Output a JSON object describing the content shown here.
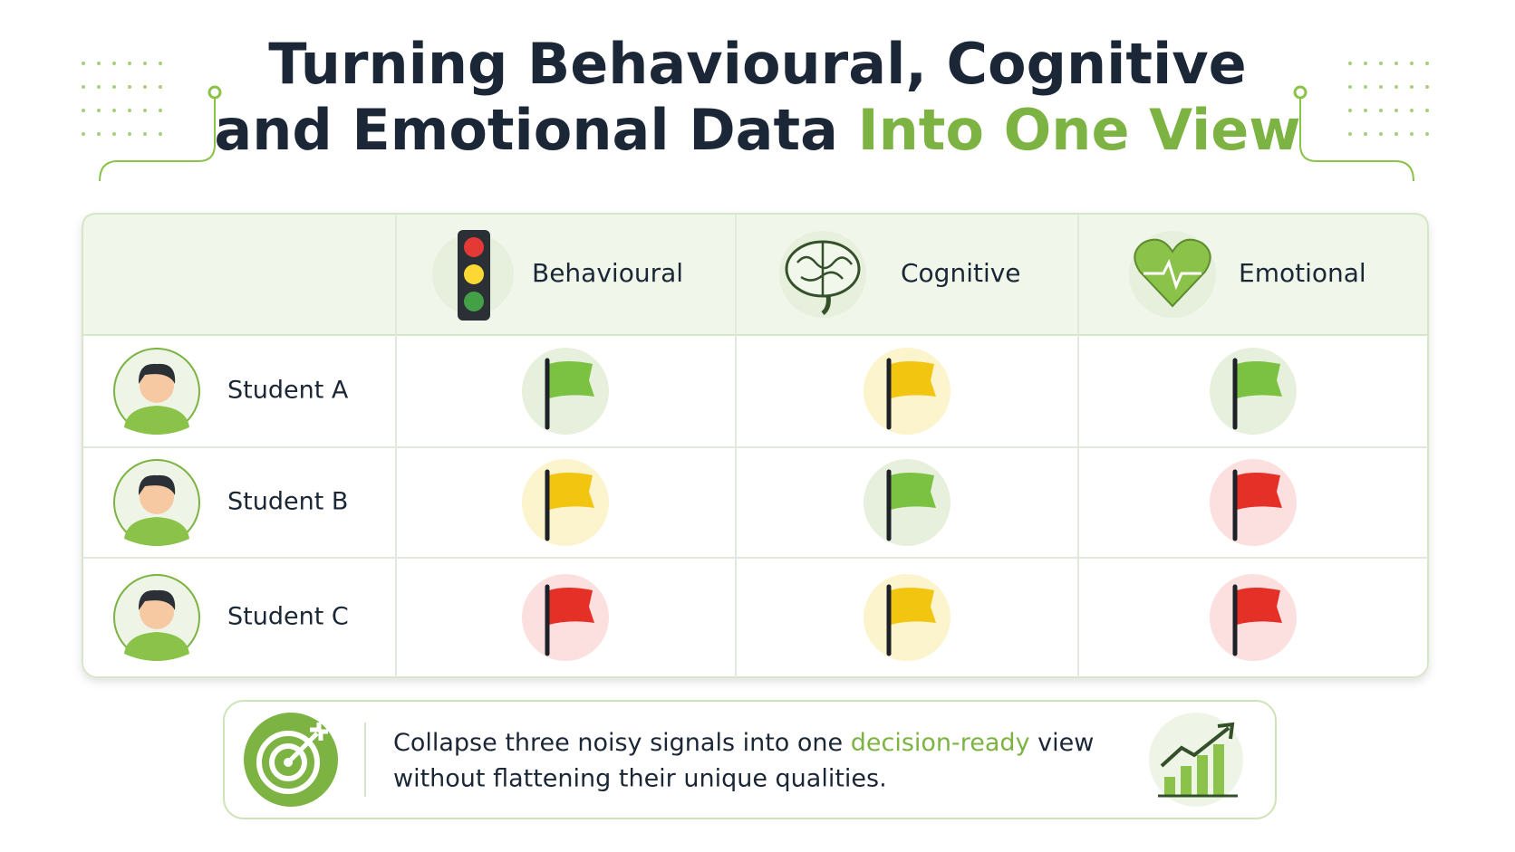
{
  "header": {
    "title_line1": "Turning Behavioural, Cognitive",
    "title_line2_start": "and Emotional Data ",
    "title_line2_accent": "Into One View"
  },
  "table": {
    "columns": [
      "Behavioural",
      "Cognitive",
      "Emotional"
    ],
    "rows": [
      {
        "name": "Student A",
        "flags": [
          "green",
          "yellow",
          "green"
        ]
      },
      {
        "name": "Student B",
        "flags": [
          "yellow",
          "green",
          "red"
        ]
      },
      {
        "name": "Student C",
        "flags": [
          "red",
          "yellow",
          "red"
        ]
      }
    ]
  },
  "footer": {
    "text": [
      "Collapse three noisy signals into one ",
      "decision-ready",
      " view",
      "without flattening their unique qualities."
    ]
  }
}
